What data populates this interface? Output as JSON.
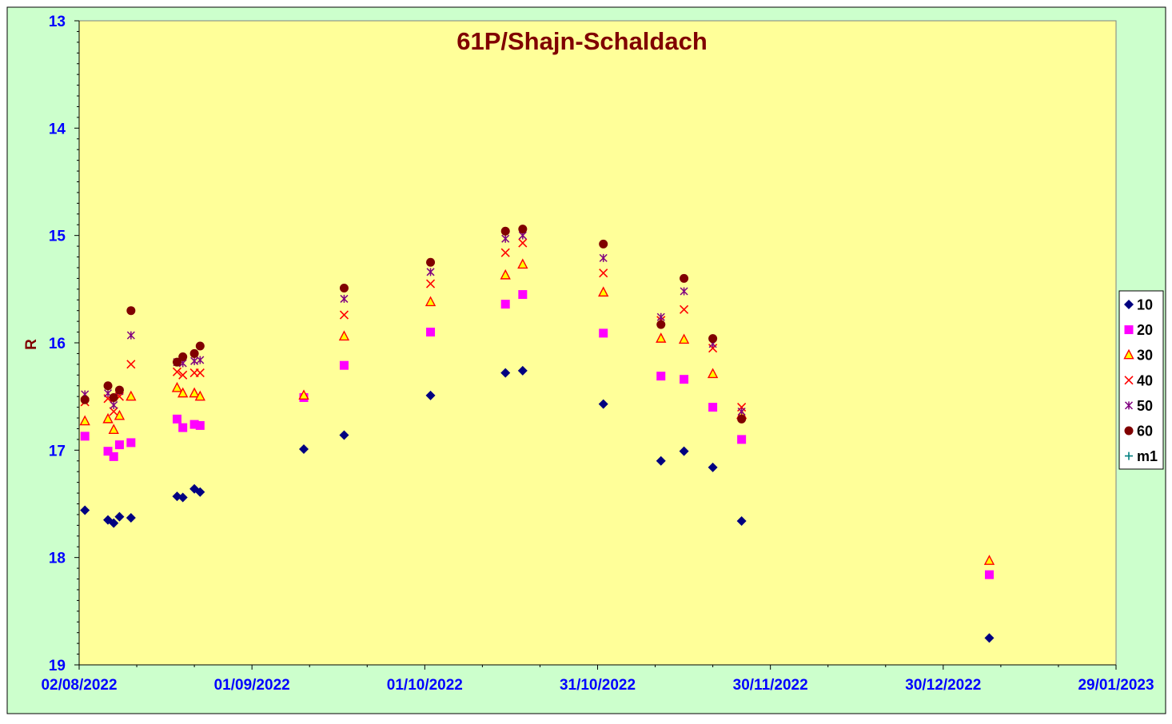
{
  "colors": {
    "chart_area": "#ccffcc",
    "plot_area": "#ffff99",
    "title": "#800000",
    "axis_labels": "#0000ff",
    "ylabel": "#800000"
  },
  "legend": {
    "entries": [
      {
        "name": "10",
        "marker": "diamond",
        "color": "#000080"
      },
      {
        "name": "20",
        "marker": "square",
        "color": "#ff00ff"
      },
      {
        "name": "30",
        "marker": "triangle",
        "color": "#ff0000",
        "fill": "#ffff00"
      },
      {
        "name": "40",
        "marker": "x",
        "color": "#ff0000"
      },
      {
        "name": "50",
        "marker": "star",
        "color": "#800080"
      },
      {
        "name": "60",
        "marker": "circle",
        "color": "#800000"
      },
      {
        "name": "m1",
        "marker": "plus",
        "color": "#008080"
      }
    ]
  },
  "chart_data": {
    "type": "scatter",
    "title": "61P/Shajn-Schaldach",
    "xlabel": "",
    "ylabel": "R",
    "xlim": [
      "2022-08-02",
      "2023-01-29"
    ],
    "ylim": [
      13,
      19
    ],
    "y_inverted": true,
    "grid": false,
    "legend_position": "right",
    "x_ticks": [
      "02/08/2022",
      "01/09/2022",
      "01/10/2022",
      "31/10/2022",
      "30/11/2022",
      "30/12/2022",
      "29/01/2023"
    ],
    "y_ticks": [
      "13",
      "14",
      "15",
      "16",
      "17",
      "18",
      "19"
    ],
    "series": [
      {
        "name": "10",
        "points": [
          [
            "2022-08-03",
            17.56
          ],
          [
            "2022-08-07",
            17.65
          ],
          [
            "2022-08-08",
            17.68
          ],
          [
            "2022-08-09",
            17.62
          ],
          [
            "2022-08-11",
            17.63
          ],
          [
            "2022-08-19",
            17.43
          ],
          [
            "2022-08-20",
            17.44
          ],
          [
            "2022-08-22",
            17.36
          ],
          [
            "2022-08-23",
            17.39
          ],
          [
            "2022-09-10",
            16.99
          ],
          [
            "2022-09-17",
            16.86
          ],
          [
            "2022-10-02",
            16.49
          ],
          [
            "2022-10-15",
            16.28
          ],
          [
            "2022-10-18",
            16.26
          ],
          [
            "2022-11-01",
            16.57
          ],
          [
            "2022-11-11",
            17.1
          ],
          [
            "2022-11-15",
            17.01
          ],
          [
            "2022-11-20",
            17.16
          ],
          [
            "2022-11-25",
            17.66
          ],
          [
            "2023-01-07",
            18.75
          ]
        ]
      },
      {
        "name": "20",
        "points": [
          [
            "2022-08-03",
            16.87
          ],
          [
            "2022-08-07",
            17.01
          ],
          [
            "2022-08-08",
            17.06
          ],
          [
            "2022-08-09",
            16.95
          ],
          [
            "2022-08-11",
            16.93
          ],
          [
            "2022-08-19",
            16.71
          ],
          [
            "2022-08-20",
            16.79
          ],
          [
            "2022-08-22",
            16.76
          ],
          [
            "2022-08-23",
            16.77
          ],
          [
            "2022-09-10",
            16.51
          ],
          [
            "2022-09-17",
            16.21
          ],
          [
            "2022-10-02",
            15.9
          ],
          [
            "2022-10-15",
            15.64
          ],
          [
            "2022-10-18",
            15.55
          ],
          [
            "2022-11-01",
            15.91
          ],
          [
            "2022-11-11",
            16.31
          ],
          [
            "2022-11-15",
            16.34
          ],
          [
            "2022-11-20",
            16.6
          ],
          [
            "2022-11-25",
            16.9
          ],
          [
            "2023-01-07",
            18.16
          ]
        ]
      },
      {
        "name": "30",
        "points": [
          [
            "2022-08-03",
            16.73
          ],
          [
            "2022-08-07",
            16.71
          ],
          [
            "2022-08-08",
            16.81
          ],
          [
            "2022-08-09",
            16.68
          ],
          [
            "2022-08-11",
            16.5
          ],
          [
            "2022-08-19",
            16.42
          ],
          [
            "2022-08-20",
            16.47
          ],
          [
            "2022-08-22",
            16.47
          ],
          [
            "2022-08-23",
            16.5
          ],
          [
            "2022-09-10",
            16.49
          ],
          [
            "2022-09-17",
            15.94
          ],
          [
            "2022-10-02",
            15.62
          ],
          [
            "2022-10-15",
            15.37
          ],
          [
            "2022-10-18",
            15.27
          ],
          [
            "2022-11-01",
            15.53
          ],
          [
            "2022-11-11",
            15.96
          ],
          [
            "2022-11-15",
            15.97
          ],
          [
            "2022-11-20",
            16.29
          ],
          [
            "2022-11-25",
            16.67
          ],
          [
            "2023-01-07",
            18.03
          ]
        ]
      },
      {
        "name": "40",
        "points": [
          [
            "2022-08-03",
            16.55
          ],
          [
            "2022-08-07",
            16.52
          ],
          [
            "2022-08-08",
            16.64
          ],
          [
            "2022-08-09",
            16.5
          ],
          [
            "2022-08-11",
            16.2
          ],
          [
            "2022-08-19",
            16.27
          ],
          [
            "2022-08-20",
            16.3
          ],
          [
            "2022-08-22",
            16.28
          ],
          [
            "2022-08-23",
            16.28
          ],
          [
            "2022-09-17",
            15.74
          ],
          [
            "2022-10-02",
            15.45
          ],
          [
            "2022-10-15",
            15.16
          ],
          [
            "2022-10-18",
            15.07
          ],
          [
            "2022-11-01",
            15.35
          ],
          [
            "2022-11-11",
            15.79
          ],
          [
            "2022-11-15",
            15.69
          ],
          [
            "2022-11-20",
            16.05
          ],
          [
            "2022-11-25",
            16.6
          ]
        ]
      },
      {
        "name": "50",
        "points": [
          [
            "2022-08-03",
            16.48
          ],
          [
            "2022-08-07",
            16.47
          ],
          [
            "2022-08-08",
            16.58
          ],
          [
            "2022-08-09",
            16.45
          ],
          [
            "2022-08-11",
            15.93
          ],
          [
            "2022-08-19",
            16.18
          ],
          [
            "2022-08-20",
            16.19
          ],
          [
            "2022-08-22",
            16.17
          ],
          [
            "2022-08-23",
            16.16
          ],
          [
            "2022-09-17",
            15.59
          ],
          [
            "2022-10-02",
            15.34
          ],
          [
            "2022-10-15",
            15.03
          ],
          [
            "2022-10-18",
            15.0
          ],
          [
            "2022-11-01",
            15.21
          ],
          [
            "2022-11-11",
            15.76
          ],
          [
            "2022-11-15",
            15.52
          ],
          [
            "2022-11-20",
            16.01
          ],
          [
            "2022-11-25",
            16.64
          ]
        ]
      },
      {
        "name": "60",
        "points": [
          [
            "2022-08-03",
            16.53
          ],
          [
            "2022-08-07",
            16.4
          ],
          [
            "2022-08-08",
            16.51
          ],
          [
            "2022-08-09",
            16.44
          ],
          [
            "2022-08-11",
            15.7
          ],
          [
            "2022-08-19",
            16.18
          ],
          [
            "2022-08-20",
            16.13
          ],
          [
            "2022-08-22",
            16.1
          ],
          [
            "2022-08-23",
            16.03
          ],
          [
            "2022-09-17",
            15.49
          ],
          [
            "2022-10-02",
            15.25
          ],
          [
            "2022-10-15",
            14.96
          ],
          [
            "2022-10-18",
            14.94
          ],
          [
            "2022-11-01",
            15.08
          ],
          [
            "2022-11-11",
            15.83
          ],
          [
            "2022-11-15",
            15.4
          ],
          [
            "2022-11-20",
            15.96
          ],
          [
            "2022-11-25",
            16.71
          ]
        ]
      },
      {
        "name": "m1",
        "points": []
      }
    ]
  }
}
